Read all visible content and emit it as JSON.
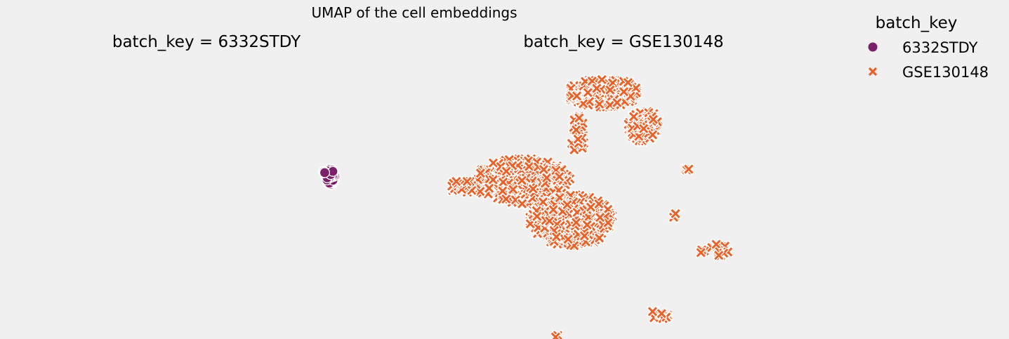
{
  "figure": {
    "suptitle": "UMAP of the cell embeddings"
  },
  "colors": {
    "background": "#f0f0f0",
    "6332STDY": "#7b1f6b",
    "GSE130148": "#e8622a",
    "marker_edge": "#ffffff"
  },
  "legend": {
    "title": "batch_key",
    "placement": "top-right",
    "items": [
      {
        "label": "6332STDY",
        "marker": "circle"
      },
      {
        "label": "GSE130148",
        "marker": "x"
      }
    ]
  },
  "chart_data": [
    {
      "type": "scatter",
      "title": "batch_key = 6332STDY",
      "series_label": "6332STDY",
      "marker": "circle",
      "axes_visible": false,
      "grid": false,
      "clusters": [
        {
          "cx": 0.28,
          "cy": 0.47,
          "rx": 0.045,
          "ry": 0.1,
          "n": 120
        },
        {
          "cx": 0.215,
          "cy": 0.41,
          "rx": 0.012,
          "ry": 0.012,
          "n": 6
        }
      ]
    },
    {
      "type": "scatter",
      "title": "batch_key = GSE130148",
      "series_label": "GSE130148",
      "marker": "x",
      "axes_visible": false,
      "grid": false,
      "clusters": [
        {
          "cx": 0.54,
          "cy": 0.15,
          "rx": 0.12,
          "ry": 0.075,
          "n": 190
        },
        {
          "cx": 0.68,
          "cy": 0.32,
          "rx": 0.055,
          "ry": 0.08,
          "n": 80
        },
        {
          "cx": 0.46,
          "cy": 0.36,
          "rx": 0.025,
          "ry": 0.1,
          "n": 24
        },
        {
          "cx": 0.28,
          "cy": 0.6,
          "rx": 0.16,
          "ry": 0.12,
          "n": 320
        },
        {
          "cx": 0.44,
          "cy": 0.8,
          "rx": 0.14,
          "ry": 0.13,
          "n": 300
        },
        {
          "cx": 0.08,
          "cy": 0.63,
          "rx": 0.04,
          "ry": 0.035,
          "n": 20
        },
        {
          "cx": 0.82,
          "cy": 0.54,
          "rx": 0.008,
          "ry": 0.008,
          "n": 3
        },
        {
          "cx": 0.78,
          "cy": 0.78,
          "rx": 0.012,
          "ry": 0.015,
          "n": 3
        },
        {
          "cx": 0.87,
          "cy": 0.96,
          "rx": 0.016,
          "ry": 0.01,
          "n": 3
        },
        {
          "cx": 0.93,
          "cy": 0.95,
          "rx": 0.035,
          "ry": 0.04,
          "n": 12
        },
        {
          "cx": 0.73,
          "cy": 1.28,
          "rx": 0.03,
          "ry": 0.03,
          "n": 12
        },
        {
          "cx": 0.39,
          "cy": 1.39,
          "rx": 0.01,
          "ry": 0.008,
          "n": 3
        }
      ]
    }
  ]
}
